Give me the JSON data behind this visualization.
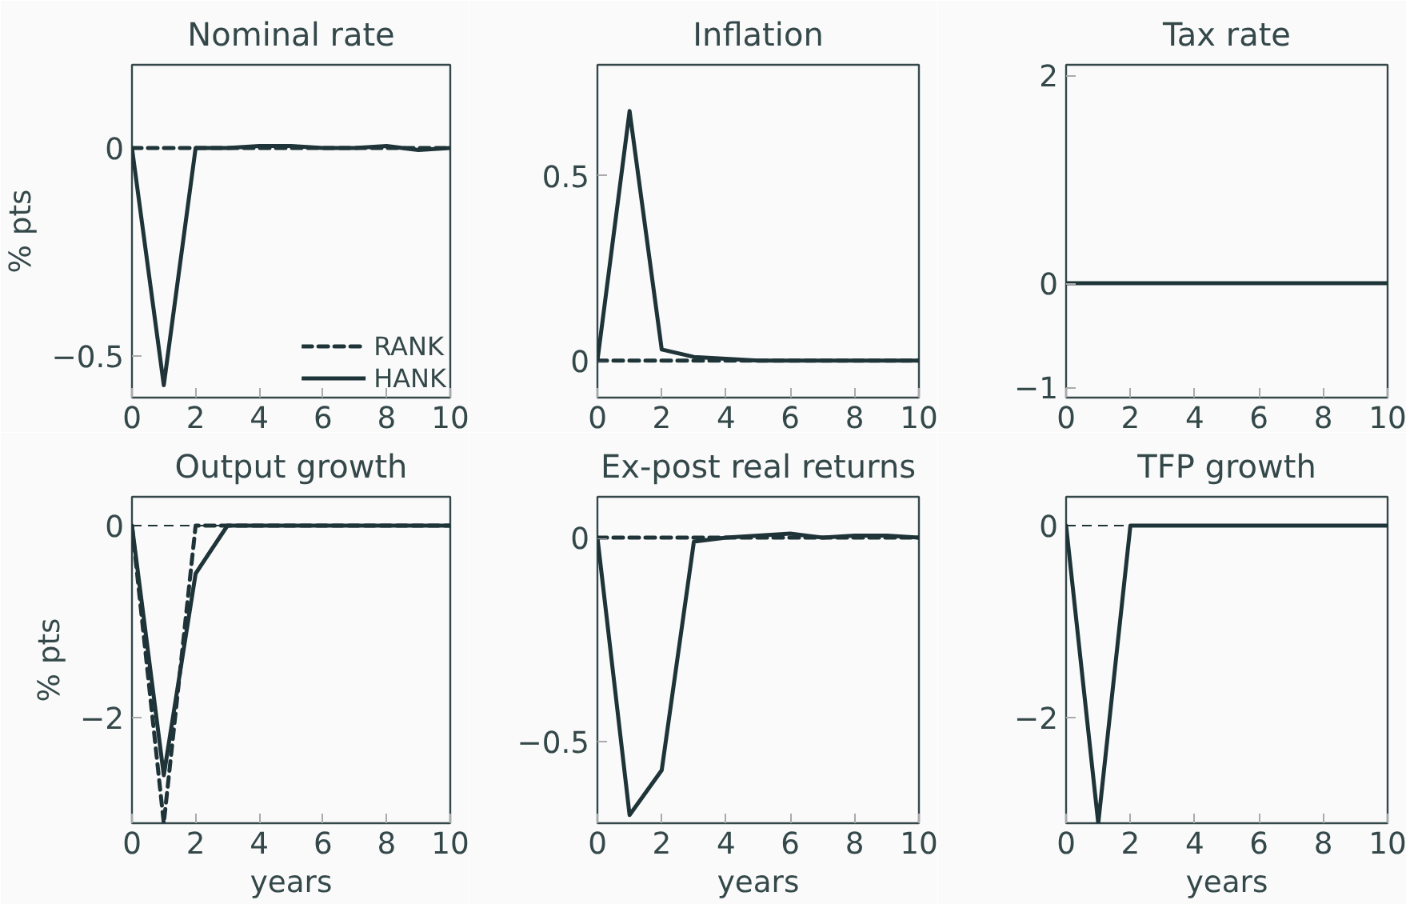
{
  "chart_data": [
    {
      "type": "line",
      "title": "Nominal rate",
      "ylabel": "% pts",
      "x": [
        0,
        1,
        2,
        3,
        4,
        5,
        6,
        7,
        8,
        9,
        10
      ],
      "xlim": [
        0,
        10
      ],
      "xticks": [
        0,
        2,
        4,
        6,
        8,
        10
      ],
      "ylim": [
        -0.6,
        0.2
      ],
      "yticks": [
        {
          "value": -0.5,
          "label": "−0.5"
        },
        0
      ],
      "legend": "bottom right",
      "grid": false,
      "ref_lines": [
        {
          "axis": "y",
          "value": 0,
          "line_style": "dashed"
        }
      ],
      "series": [
        {
          "name": "RANK",
          "color": "#1f3438",
          "line_style": "dashed",
          "values": [
            0,
            0,
            0,
            0,
            0,
            0,
            0,
            0,
            0,
            0,
            0
          ]
        },
        {
          "name": "HANK",
          "color": "#1f3438",
          "line_style": "solid",
          "values": [
            0,
            -0.57,
            0,
            0,
            0.005,
            0.005,
            0,
            0,
            0.005,
            -0.005,
            0
          ]
        }
      ]
    },
    {
      "type": "line",
      "title": "Inflation",
      "x": [
        0,
        1,
        2,
        3,
        4,
        5,
        6,
        7,
        8,
        9,
        10
      ],
      "xlim": [
        0,
        10
      ],
      "xticks": [
        0,
        2,
        4,
        6,
        8,
        10
      ],
      "ylim": [
        -0.1,
        0.8
      ],
      "yticks": [
        0,
        0.5
      ],
      "grid": false,
      "ref_lines": [
        {
          "axis": "y",
          "value": 0,
          "line_style": "dashed"
        }
      ],
      "series": [
        {
          "color": "#1f3438",
          "line_style": "dashed",
          "values": [
            0,
            0,
            0,
            0,
            0,
            0,
            0,
            0,
            0,
            0,
            0
          ]
        },
        {
          "color": "#1f3438",
          "line_style": "solid",
          "values": [
            0,
            0.675,
            0.03,
            0.01,
            0.005,
            0,
            0,
            0,
            0,
            0,
            0
          ]
        }
      ]
    },
    {
      "type": "line",
      "title": "Tax rate",
      "x": [
        0,
        1,
        2,
        3,
        4,
        5,
        6,
        7,
        8,
        9,
        10
      ],
      "xlim": [
        0,
        10
      ],
      "xticks": [
        0,
        2,
        4,
        6,
        8,
        10
      ],
      "ylim": [
        -1.1,
        2.1
      ],
      "yticks": [
        {
          "value": -1,
          "label": "−1"
        },
        0,
        2
      ],
      "grid": false,
      "series": [
        {
          "color": "#1f3438",
          "line_style": "solid",
          "values": [
            0,
            0,
            0,
            0,
            0,
            0,
            0,
            0,
            0,
            0,
            0
          ]
        }
      ]
    },
    {
      "type": "line",
      "title": "Output growth",
      "xlabel": "years",
      "ylabel": "% pts",
      "x": [
        0,
        1,
        2,
        3,
        4,
        5,
        6,
        7,
        8,
        9,
        10
      ],
      "xlim": [
        0,
        10
      ],
      "xticks": [
        0,
        2,
        4,
        6,
        8,
        10
      ],
      "ylim": [
        -3.1,
        0.3
      ],
      "yticks": [
        {
          "value": -2,
          "label": "−2"
        },
        0
      ],
      "grid": false,
      "ref_lines": [
        {
          "axis": "y",
          "value": 0,
          "line_style": "dashed"
        }
      ],
      "series": [
        {
          "color": "#1f3438",
          "line_style": "dashed",
          "values": [
            0,
            -3.1,
            0,
            0,
            0,
            0,
            0,
            0,
            0,
            0,
            0
          ]
        },
        {
          "color": "#1f3438",
          "line_style": "solid",
          "values": [
            0,
            -2.6,
            -0.5,
            0,
            0,
            0,
            0,
            0,
            0,
            0,
            0
          ]
        }
      ]
    },
    {
      "type": "line",
      "title": "Ex-post real returns",
      "xlabel": "years",
      "x": [
        0,
        1,
        2,
        3,
        4,
        5,
        6,
        7,
        8,
        9,
        10
      ],
      "xlim": [
        0,
        10
      ],
      "xticks": [
        0,
        2,
        4,
        6,
        8,
        10
      ],
      "ylim": [
        -0.7,
        0.1
      ],
      "yticks": [
        {
          "value": -0.5,
          "label": "−0.5"
        },
        0
      ],
      "grid": false,
      "ref_lines": [
        {
          "axis": "y",
          "value": 0,
          "line_style": "dashed"
        }
      ],
      "series": [
        {
          "color": "#1f3438",
          "line_style": "dashed",
          "values": [
            0,
            0,
            0,
            0,
            0,
            0,
            0,
            0,
            0,
            0,
            0
          ]
        },
        {
          "color": "#1f3438",
          "line_style": "solid",
          "values": [
            0,
            -0.68,
            -0.57,
            -0.01,
            0,
            0.005,
            0.01,
            0,
            0.005,
            0.005,
            0
          ]
        }
      ]
    },
    {
      "type": "line",
      "title": "TFP growth",
      "xlabel": "years",
      "x": [
        0,
        1,
        2,
        3,
        4,
        5,
        6,
        7,
        8,
        9,
        10
      ],
      "xlim": [
        0,
        10
      ],
      "xticks": [
        0,
        2,
        4,
        6,
        8,
        10
      ],
      "ylim": [
        -3.1,
        0.3
      ],
      "yticks": [
        {
          "value": -2,
          "label": "−2"
        },
        0
      ],
      "grid": false,
      "ref_lines": [
        {
          "axis": "y",
          "value": 0,
          "line_style": "dashed"
        }
      ],
      "series": [
        {
          "color": "#1f3438",
          "line_style": "solid",
          "values": [
            0,
            -3.1,
            0,
            0,
            0,
            0,
            0,
            0,
            0,
            0,
            0
          ]
        }
      ]
    }
  ]
}
